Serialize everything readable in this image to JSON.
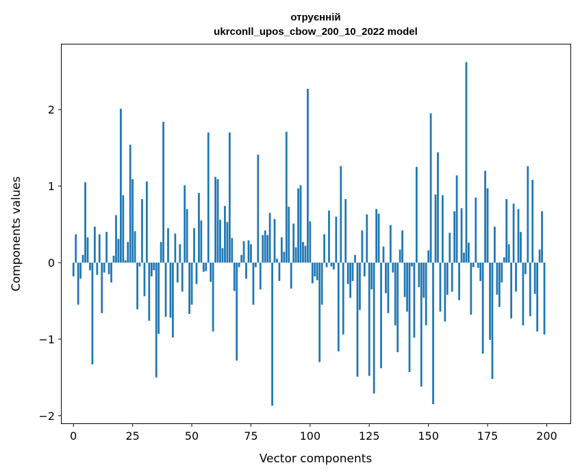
{
  "chart_data": {
    "type": "bar",
    "title": "отруєнній",
    "subtitle": "ukrconll_upos_cbow_200_10_2022 model",
    "xlabel": "Vector components",
    "ylabel": "Components values",
    "xlim": [
      -5,
      210
    ],
    "ylim": [
      -2.1,
      2.85
    ],
    "xticks": [
      0,
      25,
      50,
      75,
      100,
      125,
      150,
      175,
      200
    ],
    "xtick_labels": [
      "0",
      "25",
      "50",
      "75",
      "100",
      "125",
      "150",
      "175",
      "200"
    ],
    "yticks": [
      -2,
      -1,
      0,
      1,
      2
    ],
    "ytick_labels": [
      "−2",
      "−1",
      "0",
      "1",
      "2"
    ],
    "grid": false,
    "bar_color": "#1f77b4",
    "values": [
      -0.18,
      0.37,
      -0.55,
      -0.21,
      0.1,
      1.05,
      0.33,
      -0.1,
      -1.33,
      0.47,
      -0.16,
      0.37,
      -0.66,
      -0.13,
      0.4,
      -0.15,
      -0.26,
      0.09,
      0.62,
      0.31,
      2.01,
      0.88,
      0.03,
      0.27,
      1.54,
      1.09,
      0.41,
      -0.61,
      -0.05,
      0.83,
      -0.44,
      1.06,
      -0.76,
      -0.18,
      -0.1,
      -1.5,
      -0.93,
      0.27,
      1.84,
      -0.71,
      0.45,
      -0.72,
      -0.98,
      0.38,
      -0.26,
      0.24,
      -0.38,
      1.01,
      0.7,
      -0.67,
      -0.55,
      0.45,
      -0.28,
      0.91,
      0.55,
      -0.12,
      -0.11,
      1.7,
      -0.25,
      -0.9,
      1.12,
      1.09,
      0.56,
      0.19,
      0.74,
      0.53,
      1.7,
      0.32,
      -0.37,
      -1.28,
      -0.06,
      0.1,
      0.28,
      -0.21,
      0.29,
      0.24,
      -0.55,
      -0.06,
      1.41,
      -0.35,
      0.36,
      0.42,
      0.36,
      0.65,
      -1.87,
      0.57,
      0.05,
      -0.24,
      0.33,
      0.14,
      1.71,
      0.73,
      -0.34,
      0.51,
      0.2,
      0.97,
      1.01,
      0.27,
      0.22,
      2.27,
      0.54,
      -0.27,
      -0.18,
      -0.23,
      -1.3,
      -0.55,
      0.37,
      -0.06,
      0.68,
      -0.05,
      -0.09,
      0.6,
      -1.16,
      1.26,
      -0.94,
      0.83,
      -0.28,
      -0.46,
      -0.24,
      0.1,
      -1.49,
      -0.62,
      0.42,
      -0.18,
      0.63,
      -1.48,
      -0.35,
      -1.71,
      0.7,
      0.64,
      -1.38,
      0.21,
      -0.4,
      -0.66,
      0.49,
      -0.13,
      -0.82,
      -1.17,
      0.17,
      0.42,
      -0.45,
      -0.64,
      -1.43,
      -0.05,
      -0.98,
      1.25,
      -0.32,
      -1.62,
      -0.46,
      -0.82,
      0.16,
      1.95,
      -1.85,
      0.89,
      1.44,
      -0.64,
      0.88,
      -0.77,
      -0.42,
      0.39,
      -0.38,
      0.67,
      1.14,
      -0.49,
      0.71,
      0.13,
      2.62,
      0.26,
      -0.68,
      -0.06,
      0.85,
      -0.07,
      -0.24,
      -1.19,
      1.2,
      0.97,
      -1.01,
      -1.52,
      0.47,
      -0.42,
      -0.58,
      -0.26,
      0.07,
      0.83,
      0.24,
      -0.73,
      0.77,
      -0.38,
      0.7,
      0.4,
      -0.82,
      -0.15,
      1.26,
      -0.7,
      1.08,
      -0.41,
      -0.9,
      0.17,
      0.67,
      -0.94
    ]
  }
}
